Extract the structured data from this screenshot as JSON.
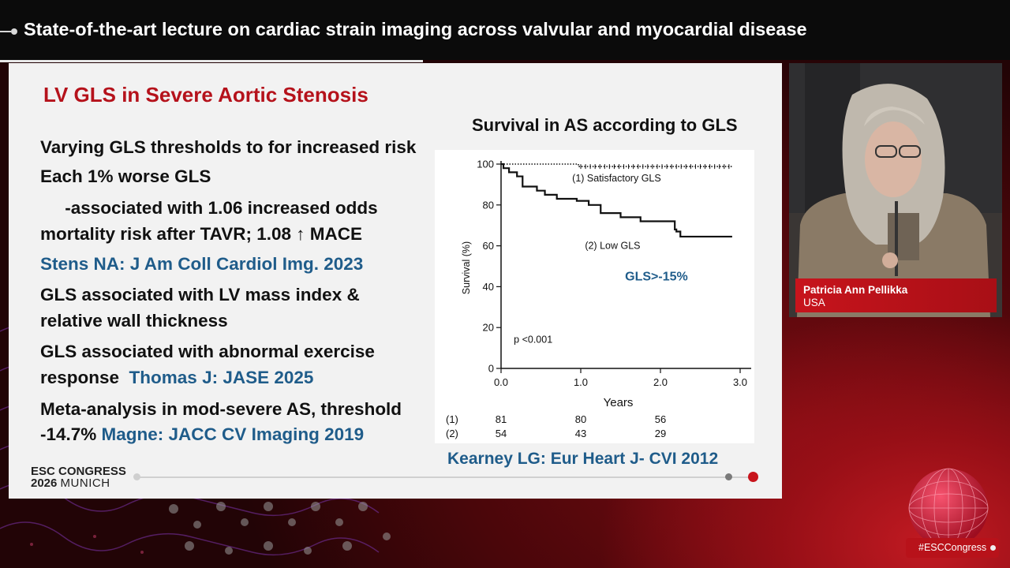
{
  "session": {
    "title": "State-of-the-art lecture on cardiac strain imaging across valvular and myocardial disease"
  },
  "slide": {
    "title": "LV GLS in Severe Aortic Stenosis",
    "bullets": [
      {
        "text": "Varying GLS thresholds to for increased risk",
        "ref": ""
      },
      {
        "text": "Each 1% worse GLS",
        "ref": ""
      },
      {
        "text": "     -associated with 1.06 increased odds",
        "ref": ""
      },
      {
        "text": "mortality risk after TAVR; 1.08 ↑ MACE",
        "ref": ""
      },
      {
        "text": "",
        "ref": "Stens NA: J Am Coll Cardiol Img. 2023"
      },
      {
        "text": "GLS associated with LV mass index &",
        "ref": ""
      },
      {
        "text": "relative wall thickness",
        "ref": ""
      },
      {
        "text": "GLS associated with abnormal exercise",
        "ref": ""
      },
      {
        "text": "response  ",
        "ref": "Thomas J: JASE 2025"
      },
      {
        "text": "Meta-analysis in mod-severe AS, threshold",
        "ref": ""
      },
      {
        "text": "-14.7% ",
        "ref": "Magne: JACC CV Imaging 2019"
      }
    ],
    "chart_caption": "Survival in AS according to GLS",
    "citation": "Kearney LG: Eur Heart J- CVI 2012",
    "logo_line1": "ESC CONGRESS",
    "logo_year": "2026",
    "logo_city": "MUNICH"
  },
  "chart_data": {
    "type": "line",
    "title": "Survival in AS according to GLS",
    "xlabel": "Years",
    "ylabel": "Survival (%)",
    "xlim": [
      0,
      3.0
    ],
    "ylim": [
      0,
      100
    ],
    "x_ticks": [
      "0.0",
      "1.0",
      "2.0",
      "3.0"
    ],
    "y_ticks": [
      "0",
      "20",
      "40",
      "60",
      "80",
      "100"
    ],
    "annotations": [
      "GLS>-15%",
      "p <0.001"
    ],
    "series": [
      {
        "name": "(1) Satisfactory GLS",
        "style": "dotted",
        "x": [
          0,
          0.95,
          0.97,
          1.3,
          1.6,
          1.9,
          2.2,
          2.5,
          2.9
        ],
        "y": [
          100,
          100,
          98.8,
          98.8,
          98.8,
          98.8,
          98.8,
          98.8,
          98.8
        ]
      },
      {
        "name": "(2) Low GLS",
        "style": "solid",
        "x": [
          0,
          0.03,
          0.1,
          0.2,
          0.27,
          0.45,
          0.55,
          0.7,
          0.95,
          1.1,
          1.25,
          1.5,
          1.75,
          2.0,
          2.18,
          2.2,
          2.25,
          2.9
        ],
        "y": [
          100,
          98,
          96,
          94,
          89,
          87,
          85,
          83,
          82,
          80,
          76,
          74,
          72,
          72,
          68,
          67,
          64.5,
          64.5
        ]
      }
    ],
    "at_risk": {
      "rows": [
        {
          "label": "(1)",
          "values": [
            "81",
            "80",
            "56"
          ]
        },
        {
          "label": "(2)",
          "values": [
            "54",
            "43",
            "29"
          ]
        }
      ],
      "x": [
        0.0,
        1.0,
        2.0
      ]
    }
  },
  "speaker": {
    "name": "Patricia Ann Pellikka",
    "country": "USA"
  },
  "hashtag": "#ESCCongress",
  "colors": {
    "accent_red": "#b5121b",
    "reference_blue": "#1f5c8a",
    "banner_red": "#c7141c"
  }
}
